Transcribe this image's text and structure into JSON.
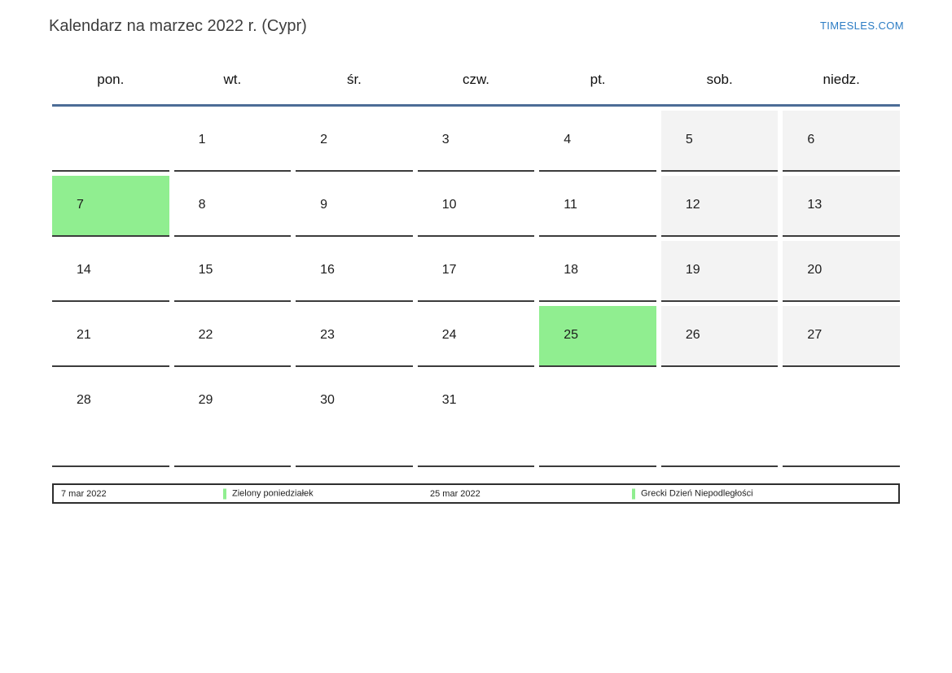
{
  "page": {
    "title": "Kalendarz na marzec 2022 r. (Cypr)",
    "brand": "TIMESLES.COM"
  },
  "colors": {
    "highlight_green": "#90ee90",
    "weekend_bg": "#f3f3f3",
    "header_line_blue": "#4c6c96",
    "cell_border": "#3c3c3c",
    "brand_blue": "#2b7cc4"
  },
  "calendar": {
    "weekdays": [
      "pon.",
      "wt.",
      "śr.",
      "czw.",
      "pt.",
      "sob.",
      "niedz."
    ],
    "weeks": [
      [
        "",
        "1",
        "2",
        "3",
        "4",
        "5",
        "6"
      ],
      [
        "7",
        "8",
        "9",
        "10",
        "11",
        "12",
        "13"
      ],
      [
        "14",
        "15",
        "16",
        "17",
        "18",
        "19",
        "20"
      ],
      [
        "21",
        "22",
        "23",
        "24",
        "25",
        "26",
        "27"
      ],
      [
        "28",
        "29",
        "30",
        "31",
        "",
        "",
        ""
      ]
    ],
    "highlighted_days": [
      "7",
      "25"
    ]
  },
  "legend": {
    "items": [
      {
        "date": "7 mar 2022",
        "name": "Zielony poniedziałek"
      },
      {
        "date": "25 mar 2022",
        "name": "Grecki Dzień Niepodległości"
      }
    ]
  }
}
